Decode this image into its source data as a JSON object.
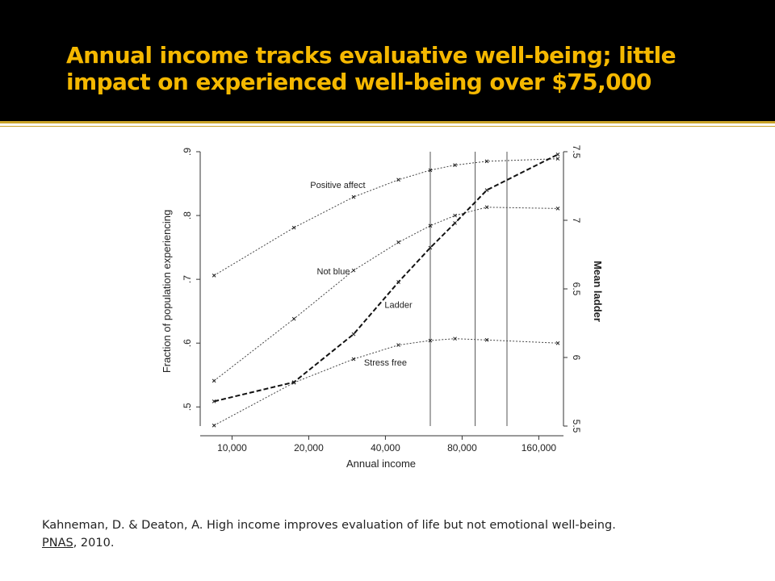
{
  "slide": {
    "title": "Annual income tracks evaluative well-being; little impact on experienced well-being over $75,000",
    "citation_text": "Kahneman, D. & Deaton, A.  High income improves evaluation of life but not emotional well-being.",
    "citation_journal": "PNAS",
    "citation_year": ", 2010.",
    "colors": {
      "title": "#f5b800",
      "title_band": "#000000",
      "accent_rule": "#c9a227"
    }
  },
  "chart_data": {
    "type": "line",
    "xlabel": "Annual income",
    "ylabel_left": "Fraction of population experiencing",
    "ylabel_right": "Mean ladder",
    "x_scale": "log",
    "xlim": [
      7500,
      200000
    ],
    "x_ticks": [
      10000,
      20000,
      40000,
      80000,
      160000
    ],
    "x_tick_labels": [
      "10,000",
      "20,000",
      "40,000",
      "80,000",
      "160,000"
    ],
    "ylim_left": [
      0.47,
      0.9
    ],
    "y_ticks_left": [
      0.5,
      0.6,
      0.7,
      0.8,
      0.9
    ],
    "y_tick_labels_left": [
      ".5",
      ".6",
      ".7",
      ".8",
      ".9"
    ],
    "ylim_right": [
      5.5,
      7.5
    ],
    "y_ticks_right": [
      5.5,
      6,
      6.5,
      7,
      7.5
    ],
    "y_tick_labels_right": [
      "5.5",
      "6",
      "6.5",
      "7",
      "7.5"
    ],
    "vertical_lines": [
      60000,
      90000,
      120000
    ],
    "series": [
      {
        "name": "Positive affect",
        "axis": "left",
        "style": "dotted",
        "x": [
          8500,
          17500,
          30000,
          45000,
          60000,
          75000,
          100000,
          190000
        ],
        "y": [
          0.706,
          0.781,
          0.829,
          0.856,
          0.871,
          0.879,
          0.885,
          0.889
        ]
      },
      {
        "name": "Not blue",
        "axis": "left",
        "style": "dotted",
        "x": [
          8500,
          17500,
          30000,
          45000,
          60000,
          75000,
          100000,
          190000
        ],
        "y": [
          0.541,
          0.638,
          0.714,
          0.758,
          0.784,
          0.8,
          0.813,
          0.811
        ]
      },
      {
        "name": "Stress free",
        "axis": "left",
        "style": "dotted",
        "x": [
          8500,
          17500,
          30000,
          45000,
          60000,
          75000,
          100000,
          190000
        ],
        "y": [
          0.471,
          0.538,
          0.575,
          0.597,
          0.604,
          0.607,
          0.605,
          0.6
        ]
      },
      {
        "name": "Ladder",
        "axis": "right",
        "style": "dashed",
        "x": [
          8500,
          17500,
          30000,
          45000,
          60000,
          75000,
          100000,
          190000
        ],
        "y": [
          5.68,
          5.82,
          6.17,
          6.55,
          6.8,
          6.98,
          7.22,
          7.48
        ]
      }
    ],
    "labels": [
      {
        "text": "Positive affect",
        "x": 26000,
        "y": 0.843,
        "axis": "left"
      },
      {
        "text": "Not blue",
        "x": 25000,
        "y": 0.708,
        "axis": "left"
      },
      {
        "text": "Ladder",
        "x": 45000,
        "y": 0.655,
        "axis": "left"
      },
      {
        "text": "Stress free",
        "x": 40000,
        "y": 0.565,
        "axis": "left"
      }
    ],
    "grid": false
  }
}
